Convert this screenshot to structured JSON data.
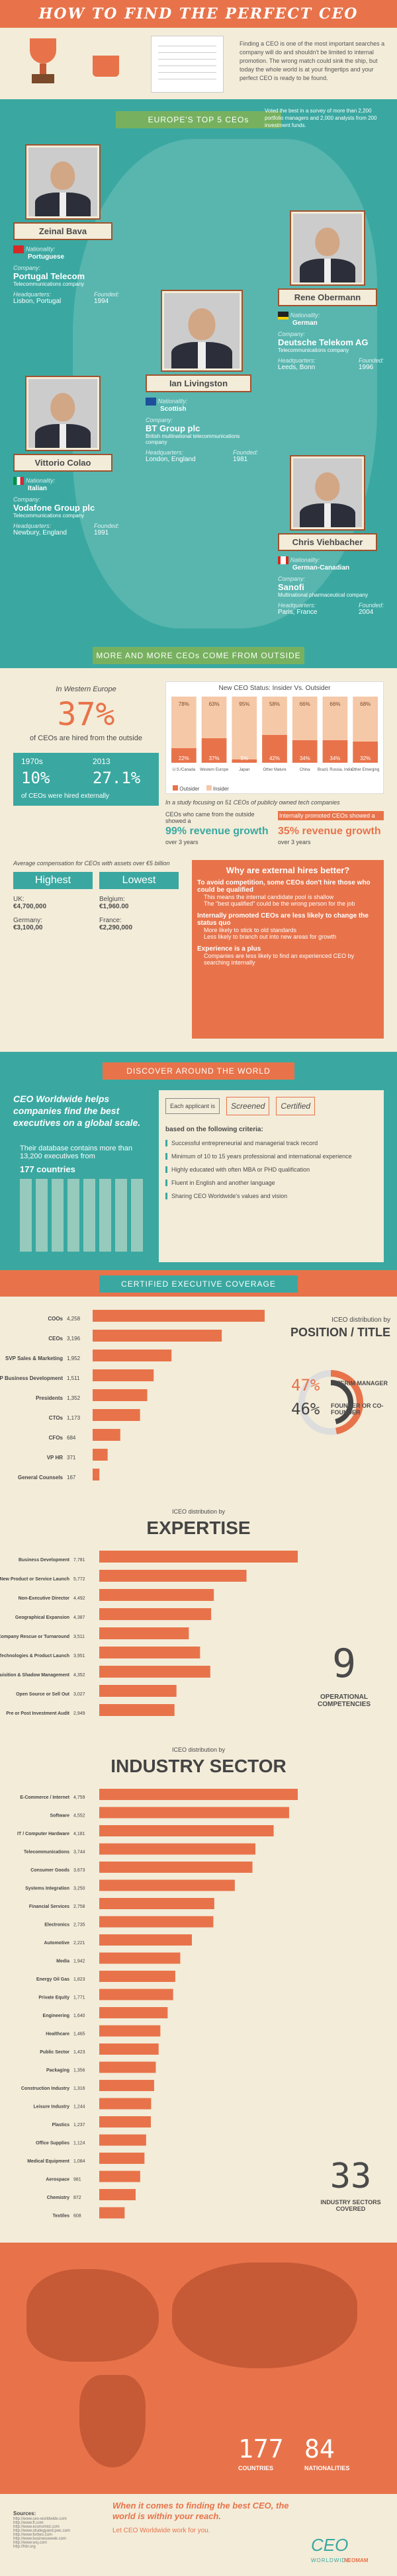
{
  "header": {
    "title": "HOW TO FIND THE PERFECT CEO",
    "intro": "Finding a CEO is one of the most important searches a company will do and shouldn't be limited to internal promotion. The wrong match could sink the ship, but today the whole world is at your fingertips and your perfect CEO is ready to be found."
  },
  "top_ceos": {
    "banner": "EUROPE'S TOP 5 CEOs",
    "note": "Voted the best in a survey of more than 2,200 portfolio managers and 2,000 analysts from 200 investment funds.",
    "labels": {
      "nationality": "Nationality:",
      "company": "Company:",
      "headquarters": "Headquarters:",
      "founded": "Founded:"
    },
    "people": [
      {
        "name": "Zeinal Bava",
        "nationality": "Portuguese",
        "company": "Portugal Telecom",
        "company_type": "Telecommunications company",
        "hq": "Lisbon, Portugal",
        "founded": "1994"
      },
      {
        "name": "Rene Obermann",
        "nationality": "German",
        "company": "Deutsche Telekom AG",
        "company_type": "Telecommunications company",
        "hq": "Leeds, Bonn",
        "founded": "1996"
      },
      {
        "name": "Ian Livingston",
        "nationality": "Scottish",
        "company": "BT Group plc",
        "company_type": "British multinational telecommunications company",
        "hq": "London, England",
        "founded": "1981"
      },
      {
        "name": "Vittorio Colao",
        "nationality": "Italian",
        "company": "Vodafone Group plc",
        "company_type": "Telecommunications company",
        "hq": "Newbury, England",
        "founded": "1991"
      },
      {
        "name": "Chris Viehbacher",
        "nationality": "German-Canadian",
        "company": "Sanofi",
        "company_type": "Multinational pharmaceutical company",
        "hq": "Paris, France",
        "founded": "2004"
      }
    ]
  },
  "outside": {
    "banner": "MORE AND MORE CEOs COME FROM OUTSIDE",
    "western_label": "In Western Europe",
    "western_pct": "37%",
    "western_sub": "of CEOs are hired from the outside",
    "year1": "1970s",
    "year1_pct": "10%",
    "year2": "2013",
    "year2_pct": "27.1%",
    "years_caption": "of CEOs were hired externally",
    "study_text": "In a study focusing on 51 CEOs of publicly owned tech companies",
    "outside_text": "CEOs who came from the outside showed a",
    "outside_growth": "99% revenue growth",
    "outside_period": "over 3 years",
    "internal_text": "Internally promoted CEOs showed a",
    "internal_growth": "35% revenue growth",
    "internal_period": "over 3 years",
    "comp_title": "Average compensation for CEOs with assets over €5 billion",
    "highest_label": "Highest",
    "lowest_label": "Lowest",
    "highest": [
      {
        "country": "UK:",
        "value": "€4,700,000"
      },
      {
        "country": "Germany:",
        "value": "€3,100,00"
      }
    ],
    "lowest": [
      {
        "country": "Belgium:",
        "value": "€1,960.00"
      },
      {
        "country": "France:",
        "value": "€2,290,000"
      }
    ],
    "why_title": "Why are external hires better?",
    "why_points": [
      "To avoid competition, some CEOs don't hire those who could be qualified",
      "This means the internal candidate pool is shallow",
      "The \"best qualified\" could be the wrong person for the job",
      "Internally promoted CEOs are less likely to change the status quo",
      "More likely to stick to old standards",
      "Less likely to branch out into new areas for growth",
      "Experience is a plus",
      "Companies are less likely to find an experienced CEO by searching internally"
    ]
  },
  "status_chart": {
    "title": "New CEO Status: Insider Vs. Outsider",
    "legend_outsider": "Outsider",
    "legend_insider": "Insider"
  },
  "chart_data": [
    {
      "type": "bar",
      "title": "New CEO Status: Insider Vs. Outsider",
      "categories": [
        "U.S./Canada",
        "Western Europe",
        "Japan",
        "Other Mature",
        "China",
        "Brazil, Russia, India",
        "Other Emerging"
      ],
      "series": [
        {
          "name": "Outsider",
          "values": [
            22,
            37,
            5,
            42,
            34,
            34,
            32
          ]
        },
        {
          "name": "Insider",
          "values": [
            78,
            63,
            95,
            58,
            66,
            66,
            68
          ]
        }
      ],
      "ylim": [
        0,
        100
      ]
    },
    {
      "type": "bar",
      "title": "",
      "categories": [
        "COOs",
        "CEOs",
        "SVP Sales & Marketing",
        "VP Business Development",
        "Presidents",
        "CTOs",
        "CFOs",
        "VP HR",
        "General Counsels"
      ],
      "values": [
        4258,
        3196,
        1952,
        1511,
        1352,
        1173,
        684,
        371,
        167
      ]
    },
    {
      "type": "bar",
      "title": "ICEO distribution by POSITION / TITLE",
      "categories": [
        "INTERIM MANAGER",
        "FOUNDER OR CO-FOUNDER"
      ],
      "values": [
        47,
        46
      ]
    },
    {
      "type": "bar",
      "title": "EXPERTISE",
      "categories": [
        "Business Development",
        "New Product or Service Launch",
        "Non-Executive Director",
        "Geographical Expansion",
        "Company Rescue or Turnaround",
        "Technologies & Product Launch",
        "Acquisition & Shadow Management",
        "Open Source or Sell Out",
        "Pre or Post Investment Audit"
      ],
      "values": [
        7781,
        5772,
        4492,
        4387,
        3511,
        3951,
        4352,
        3027,
        2949
      ]
    },
    {
      "type": "bar",
      "title": "INDUSTRY SECTOR",
      "categories": [
        "E-Commerce / Internet",
        "Software",
        "IT / Computer Hardware",
        "Telecommunications",
        "Consumer Goods",
        "Systems Integration",
        "Financial Services",
        "Electronics",
        "Automotive",
        "Media",
        "Energy Oil Gas",
        "Private Equity",
        "Engineering",
        "Healthcare",
        "Public Sector",
        "Packaging",
        "Construction Industry",
        "Leisure Industry",
        "Plastics",
        "Office Supplies",
        "Medical Equipment",
        "Aerospace",
        "Chemistry",
        "Textiles"
      ],
      "values": [
        4759,
        4552,
        4181,
        3744,
        3673,
        3250,
        2758,
        2735,
        2221,
        1942,
        1823,
        1771,
        1640,
        1465,
        1423,
        1356,
        1316,
        1244,
        1237,
        1124,
        1084,
        981,
        872,
        608
      ]
    }
  ],
  "discover": {
    "banner": "DISCOVER AROUND THE WORLD",
    "lead": "CEO Worldwide helps companies find the best executives on a global scale.",
    "db_text": "Their database contains more than 13,200 executives from",
    "countries": "177 countries",
    "flow_step1": "Each applicant is",
    "flow_step2": "Screened",
    "flow_step3": "Certified",
    "criteria_title": "based on the following criteria:",
    "criteria": [
      "Successful entrepreneurial and managerial track record",
      "Minimum of 10 to 15 years professional and international experience",
      "Highly educated with often MBA or PHD qualification",
      "Fluent in English and another language",
      "Sharing CEO Worldwide's values and vision"
    ]
  },
  "coverage": {
    "banner": "CERTIFIED EXECUTIVE COVERAGE",
    "position_caption": "ICEO distribution by",
    "position_title": "POSITION / TITLE",
    "interim_pct": "47%",
    "interim_label": "INTERIM MANAGER",
    "founder_pct": "46%",
    "founder_label": "FOUNDER OR CO-FOUNDER",
    "expertise_caption": "ICEO distribution by",
    "expertise_title": "EXPERTISE",
    "operational_num": "9",
    "operational_label": "OPERATIONAL COMPETENCIES",
    "industry_caption": "ICEO distribution by",
    "industry_title": "INDUSTRY SECTOR",
    "sectors_num": "33",
    "sectors_label": "INDUSTRY SECTORS COVERED"
  },
  "map": {
    "countries_num": "177",
    "countries_label": "COUNTRIES",
    "nat_num": "84",
    "nat_label": "NATIONALITIES"
  },
  "footer": {
    "tagline": "When it comes to finding the best CEO, the world is within your reach.",
    "subline": "Let CEO Worldwide work for you.",
    "sources_title": "Sources:",
    "sources": "http://www.ceo-worldwide.com\nhttp://www.ft.com\nhttp://www.economist.com\nhttp://www.strategyand.pwc.com\nhttp://www.forbes.com\nhttp://www.businessweek.com\nhttp://www.wsj.com\nhttp://hbr.org",
    "logo": "CEO",
    "logo_sub": "WORLDWIDE",
    "credit": "NEOMAM"
  }
}
